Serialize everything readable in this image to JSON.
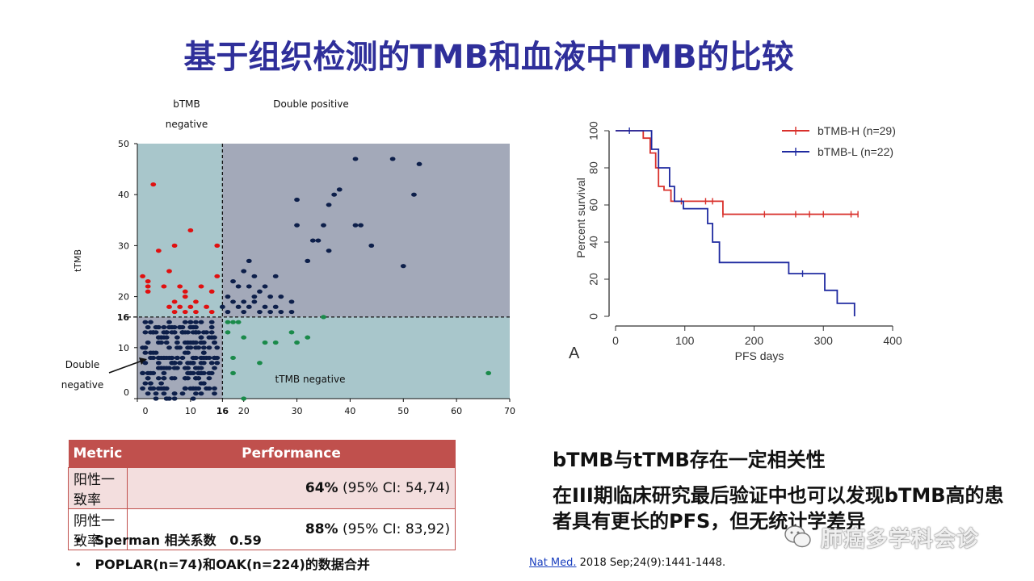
{
  "title": "基于组织检测的TMB和血液中TMB的比较",
  "scatter": {
    "labels": {
      "btmb_negative_1": "bTMB",
      "btmb_negative_2": "negative",
      "double_positive": "Double positive",
      "double_negative_1": "Double",
      "double_negative_2": "negative",
      "ttmb_negative": "tTMB negative",
      "ylabel": "tTMB",
      "cutoff_x": "16",
      "cutoff_y": "16"
    }
  },
  "chart_data": [
    {
      "type": "scatter",
      "title": "",
      "xlabel": "",
      "ylabel": "tTMB",
      "xlim": [
        0,
        70
      ],
      "ylim": [
        0,
        50
      ],
      "xticks": [
        "0",
        "10",
        "16",
        "20",
        "30",
        "40",
        "50",
        "60",
        "70"
      ],
      "yticks": [
        "0",
        "10",
        "16",
        "20",
        "30",
        "40",
        "50"
      ],
      "threshold": {
        "x": 16,
        "y": 16
      },
      "colors": {
        "double_positive": "#0d1f4a",
        "double_negative": "#0d1f4a",
        "btmb_negative": "#e01010",
        "ttmb_negative": "#1a8a4a",
        "bg_dark": "#a3a9b9",
        "bg_light": "#a8c6cb"
      },
      "series": [
        {
          "group": "btmb_negative",
          "color": "#e01010",
          "points": [
            [
              3,
              42
            ],
            [
              10,
              33
            ],
            [
              7,
              30
            ],
            [
              4,
              29
            ],
            [
              15,
              30
            ],
            [
              1,
              24
            ],
            [
              2,
              23
            ],
            [
              2,
              22
            ],
            [
              2,
              21
            ],
            [
              6,
              25
            ],
            [
              5,
              22
            ],
            [
              8,
              22
            ],
            [
              9,
              21
            ],
            [
              14,
              21
            ],
            [
              15,
              24
            ],
            [
              12,
              22
            ],
            [
              9,
              20
            ],
            [
              11,
              19
            ],
            [
              7,
              19
            ],
            [
              8,
              18
            ],
            [
              6,
              18
            ],
            [
              10,
              18
            ],
            [
              13,
              18
            ],
            [
              9,
              17
            ],
            [
              7,
              17
            ],
            [
              11,
              17
            ],
            [
              14,
              17
            ]
          ]
        },
        {
          "group": "double_positive",
          "color": "#0d1f4a",
          "points": [
            [
              41,
              47
            ],
            [
              48,
              47
            ],
            [
              53,
              46
            ],
            [
              38,
              41
            ],
            [
              37,
              40
            ],
            [
              36,
              38
            ],
            [
              30,
              39
            ],
            [
              30,
              34
            ],
            [
              35,
              34
            ],
            [
              41,
              34
            ],
            [
              42,
              34
            ],
            [
              52,
              40
            ],
            [
              44,
              30
            ],
            [
              33,
              31
            ],
            [
              34,
              31
            ],
            [
              36,
              29
            ],
            [
              32,
              27
            ],
            [
              50,
              26
            ],
            [
              21,
              27
            ],
            [
              20,
              25
            ],
            [
              22,
              24
            ],
            [
              26,
              24
            ],
            [
              18,
              23
            ],
            [
              19,
              22
            ],
            [
              21,
              22
            ],
            [
              24,
              22
            ],
            [
              23,
              21
            ],
            [
              17,
              20
            ],
            [
              22,
              20
            ],
            [
              25,
              20
            ],
            [
              27,
              20
            ],
            [
              29,
              19
            ],
            [
              18,
              19
            ],
            [
              20,
              19
            ],
            [
              22,
              19
            ],
            [
              16,
              18
            ],
            [
              19,
              18
            ],
            [
              21,
              18
            ],
            [
              24,
              18
            ],
            [
              26,
              18
            ],
            [
              17,
              17
            ],
            [
              20,
              17
            ],
            [
              23,
              17
            ],
            [
              25,
              17
            ],
            [
              27,
              17
            ],
            [
              29,
              17
            ]
          ]
        },
        {
          "group": "ttmb_negative",
          "color": "#1a8a4a",
          "points": [
            [
              35,
              16
            ],
            [
              17,
              15
            ],
            [
              18,
              15
            ],
            [
              19,
              15
            ],
            [
              17,
              13
            ],
            [
              20,
              12
            ],
            [
              24,
              11
            ],
            [
              26,
              11
            ],
            [
              30,
              11
            ],
            [
              32,
              12
            ],
            [
              29,
              13
            ],
            [
              18,
              8
            ],
            [
              23,
              7
            ],
            [
              18,
              5
            ],
            [
              66,
              5
            ],
            [
              20,
              0
            ]
          ]
        },
        {
          "group": "double_negative",
          "color": "#0d1f4a",
          "count": 240,
          "x_range": [
            1,
            15
          ],
          "y_range": [
            0,
            15
          ]
        }
      ]
    },
    {
      "type": "line",
      "title": "",
      "xlabel": "PFS days",
      "ylabel": "Percent survival",
      "xlim": [
        0,
        400
      ],
      "ylim": [
        0,
        100
      ],
      "xticks": [
        "0",
        "100",
        "200",
        "300",
        "400"
      ],
      "yticks": [
        "0",
        "20",
        "40",
        "60",
        "80",
        "100"
      ],
      "panel_label": "A",
      "legend_position": "top-right",
      "series": [
        {
          "name": "bTMB-H (n=29)",
          "color": "#d9302b",
          "steps": [
            [
              0,
              100
            ],
            [
              40,
              100
            ],
            [
              40,
              96
            ],
            [
              50,
              96
            ],
            [
              50,
              88
            ],
            [
              58,
              88
            ],
            [
              58,
              80
            ],
            [
              62,
              80
            ],
            [
              62,
              70
            ],
            [
              70,
              70
            ],
            [
              70,
              68
            ],
            [
              80,
              68
            ],
            [
              80,
              62
            ],
            [
              155,
              62
            ],
            [
              155,
              55
            ],
            [
              350,
              55
            ]
          ],
          "censor_x": [
            95,
            130,
            140,
            155,
            215,
            260,
            280,
            300,
            340,
            350
          ]
        },
        {
          "name": "bTMB-L (n=22)",
          "color": "#1f2aa0",
          "steps": [
            [
              0,
              100
            ],
            [
              52,
              100
            ],
            [
              52,
              90
            ],
            [
              62,
              90
            ],
            [
              62,
              80
            ],
            [
              78,
              80
            ],
            [
              78,
              70
            ],
            [
              85,
              70
            ],
            [
              85,
              62
            ],
            [
              98,
              62
            ],
            [
              98,
              58
            ],
            [
              133,
              58
            ],
            [
              133,
              50
            ],
            [
              140,
              50
            ],
            [
              140,
              40
            ],
            [
              150,
              40
            ],
            [
              150,
              29
            ],
            [
              250,
              29
            ],
            [
              250,
              23
            ],
            [
              302,
              23
            ],
            [
              302,
              14
            ],
            [
              320,
              14
            ],
            [
              320,
              7
            ],
            [
              345,
              7
            ],
            [
              345,
              0
            ]
          ],
          "censor_x": [
            20,
            270
          ]
        }
      ]
    }
  ],
  "table": {
    "headers": [
      "Metric",
      "Performance"
    ],
    "rows": [
      {
        "metric": "阳性一致率",
        "bold": "64%",
        "rest": " (95% CI: 54,74)"
      },
      {
        "metric": "阴性一致率",
        "bold": "88%",
        "rest": " (95% CI: 83,92)"
      }
    ]
  },
  "bullets": [
    "Sperman 相关系数   0.59",
    "POPLAR(n=74)和OAK(n=224)的数据合并"
  ],
  "right_text": {
    "line1": "bTMB与tTMB存在一定相关性",
    "line2": "在III期临床研究最后验证中也可以发现bTMB高的患者具有更长的PFS，但无统计学差异"
  },
  "citation": {
    "link": "Nat Med.",
    "rest": " 2018 Sep;24(9):1441-1448."
  },
  "watermark": "肺癌多学科会诊"
}
